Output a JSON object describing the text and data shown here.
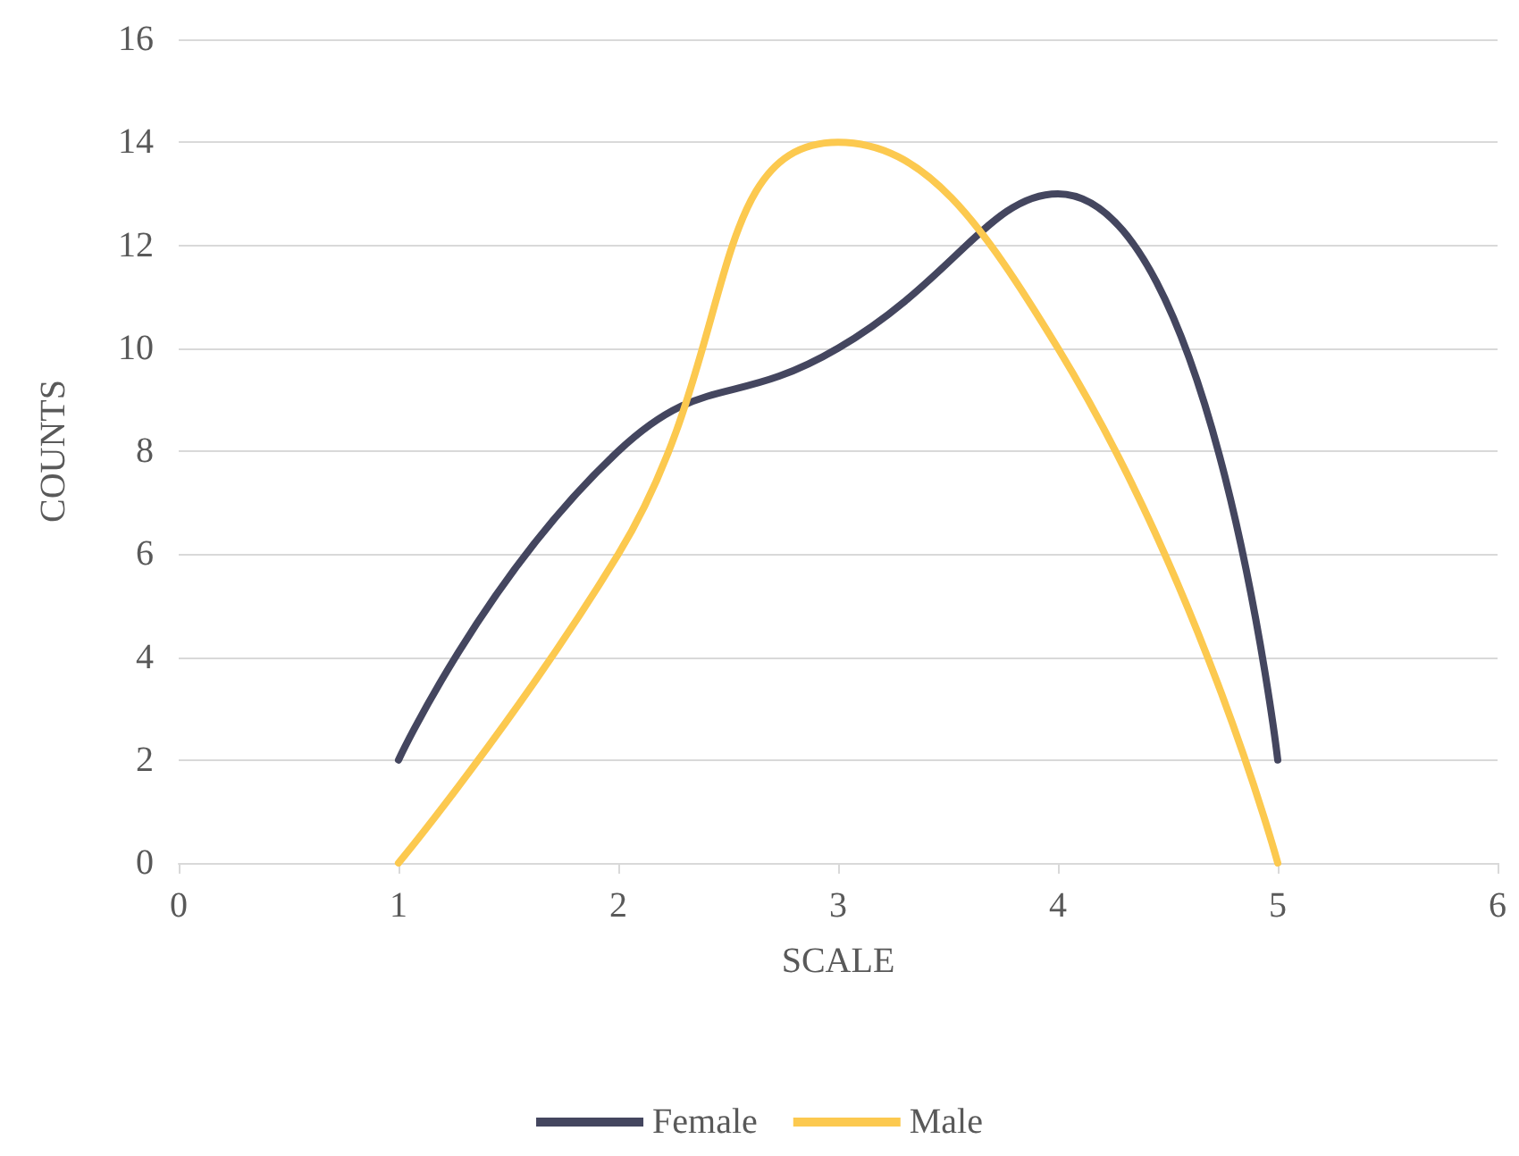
{
  "chart_data": {
    "type": "line",
    "xlabel": "SCALE",
    "ylabel": "COUNTS",
    "x": [
      1,
      2,
      3,
      4,
      5
    ],
    "series": [
      {
        "name": "Female",
        "color": "#44465f",
        "values": [
          2,
          8,
          10,
          13,
          2
        ]
      },
      {
        "name": "Male",
        "color": "#fcc94f",
        "values": [
          0,
          6,
          14,
          10,
          0
        ]
      }
    ],
    "xlim": [
      0,
      6
    ],
    "xticks": [
      0,
      1,
      2,
      3,
      4,
      5,
      6
    ],
    "ylim": [
      0,
      16
    ],
    "yticks": [
      0,
      2,
      4,
      6,
      8,
      10,
      12,
      14,
      16
    ],
    "grid": "y",
    "legend": "bottom",
    "marker": "none",
    "line_style": "solid"
  }
}
